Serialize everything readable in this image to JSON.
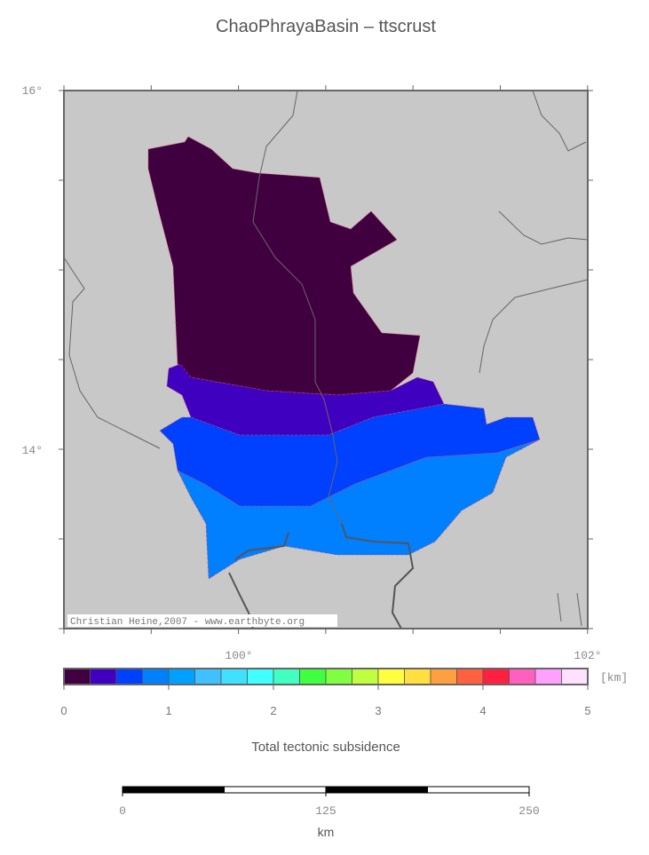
{
  "title": "ChaoPhrayaBasin – ttscrust",
  "map": {
    "lat_labels": [
      "16°",
      "14°"
    ],
    "lon_labels": [
      "100°",
      "102°"
    ],
    "credit": "Christian Heine,2007 - www.earthbyte.org"
  },
  "colorbar": {
    "label": "Total tectonic subsidence",
    "unit": "[km]",
    "range": [
      0,
      5
    ],
    "ticks": [
      0,
      1,
      2,
      3,
      4,
      5
    ],
    "colors": [
      "#400040",
      "#4000c0",
      "#0040ff",
      "#0080ff",
      "#00a0ff",
      "#40c0ff",
      "#40e0ff",
      "#40ffff",
      "#40ffc0",
      "#40ff40",
      "#80ff40",
      "#c0ff40",
      "#ffff40",
      "#ffe040",
      "#ffa040",
      "#ff6040",
      "#ff2040",
      "#ff60c0",
      "#ffa0ff",
      "#ffe0ff"
    ]
  },
  "scalebar": {
    "range": [
      0,
      250
    ],
    "ticks": [
      0,
      125,
      250
    ],
    "unit": "km"
  }
}
